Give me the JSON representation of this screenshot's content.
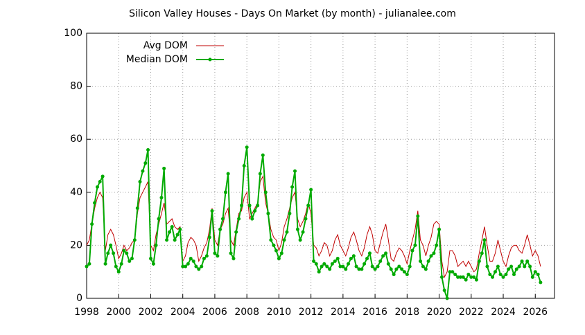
{
  "chart_data": {
    "type": "line",
    "title": "Silicon Valley Houses - Days On Market (by month) - julianalee.com",
    "x": [
      1998.0,
      1998.17,
      1998.33,
      1998.5,
      1998.67,
      1998.83,
      1999.0,
      1999.17,
      1999.33,
      1999.5,
      1999.67,
      1999.83,
      2000.0,
      2000.17,
      2000.33,
      2000.5,
      2000.67,
      2000.83,
      2001.0,
      2001.17,
      2001.33,
      2001.5,
      2001.67,
      2001.83,
      2002.0,
      2002.17,
      2002.33,
      2002.5,
      2002.67,
      2002.83,
      2003.0,
      2003.17,
      2003.33,
      2003.5,
      2003.67,
      2003.83,
      2004.0,
      2004.17,
      2004.33,
      2004.5,
      2004.67,
      2004.83,
      2005.0,
      2005.17,
      2005.33,
      2005.5,
      2005.67,
      2005.83,
      2006.0,
      2006.17,
      2006.33,
      2006.5,
      2006.67,
      2006.83,
      2007.0,
      2007.17,
      2007.33,
      2007.5,
      2007.67,
      2007.83,
      2008.0,
      2008.17,
      2008.33,
      2008.5,
      2008.67,
      2008.83,
      2009.0,
      2009.17,
      2009.33,
      2009.5,
      2009.67,
      2009.83,
      2010.0,
      2010.17,
      2010.33,
      2010.5,
      2010.67,
      2010.83,
      2011.0,
      2011.17,
      2011.33,
      2011.5,
      2011.67,
      2011.83,
      2012.0,
      2012.17,
      2012.33,
      2012.5,
      2012.67,
      2012.83,
      2013.0,
      2013.17,
      2013.33,
      2013.5,
      2013.67,
      2013.83,
      2014.0,
      2014.17,
      2014.33,
      2014.5,
      2014.67,
      2014.83,
      2015.0,
      2015.17,
      2015.33,
      2015.5,
      2015.67,
      2015.83,
      2016.0,
      2016.17,
      2016.33,
      2016.5,
      2016.67,
      2016.83,
      2017.0,
      2017.17,
      2017.33,
      2017.5,
      2017.67,
      2017.83,
      2018.0,
      2018.17,
      2018.33,
      2018.5,
      2018.67,
      2018.83,
      2019.0,
      2019.17,
      2019.33,
      2019.5,
      2019.67,
      2019.83,
      2020.0,
      2020.17,
      2020.33,
      2020.5,
      2020.67,
      2020.83,
      2021.0,
      2021.17,
      2021.33,
      2021.5,
      2021.67,
      2021.83,
      2022.0,
      2022.17,
      2022.33,
      2022.5,
      2022.67,
      2022.83,
      2023.0,
      2023.17,
      2023.33,
      2023.5,
      2023.67,
      2023.83,
      2024.0,
      2024.17,
      2024.33,
      2024.5,
      2024.67,
      2024.83,
      2025.0,
      2025.17,
      2025.33,
      2025.5,
      2025.67,
      2025.83,
      2026.0,
      2026.17,
      2026.33
    ],
    "series": [
      {
        "name": "Avg DOM",
        "color": "#c00000",
        "marker": "none",
        "values": [
          20,
          22,
          28,
          34,
          38,
          40,
          38,
          18,
          24,
          26,
          24,
          20,
          15,
          17,
          20,
          18,
          19,
          21,
          22,
          32,
          38,
          40,
          42,
          44,
          20,
          18,
          24,
          28,
          32,
          36,
          28,
          29,
          30,
          27,
          26,
          27,
          14,
          16,
          21,
          23,
          22,
          20,
          14,
          16,
          19,
          21,
          26,
          34,
          22,
          20,
          26,
          28,
          32,
          34,
          22,
          20,
          26,
          32,
          33,
          38,
          40,
          30,
          32,
          34,
          36,
          44,
          46,
          36,
          32,
          26,
          23,
          22,
          18,
          21,
          27,
          30,
          34,
          38,
          40,
          30,
          27,
          29,
          32,
          36,
          32,
          20,
          19,
          16,
          18,
          21,
          20,
          16,
          18,
          22,
          24,
          20,
          18,
          16,
          19,
          23,
          25,
          22,
          18,
          16,
          19,
          24,
          27,
          24,
          18,
          17,
          21,
          25,
          28,
          22,
          15,
          14,
          17,
          19,
          18,
          16,
          13,
          18,
          22,
          26,
          33,
          22,
          20,
          16,
          20,
          23,
          28,
          29,
          28,
          14,
          8,
          10,
          18,
          18,
          16,
          12,
          13,
          14,
          12,
          14,
          12,
          10,
          11,
          17,
          22,
          27,
          20,
          14,
          14,
          17,
          22,
          18,
          14,
          12,
          16,
          19,
          20,
          20,
          18,
          17,
          20,
          24,
          20,
          16,
          18,
          16,
          12
        ]
      },
      {
        "name": "Median DOM",
        "color": "#00aa00",
        "marker": "circle",
        "values": [
          12,
          13,
          28,
          36,
          42,
          44,
          46,
          13,
          17,
          20,
          17,
          12,
          10,
          13,
          18,
          17,
          14,
          15,
          22,
          34,
          44,
          48,
          51,
          56,
          15,
          13,
          20,
          30,
          38,
          49,
          22,
          25,
          27,
          22,
          24,
          26,
          12,
          12,
          13,
          15,
          14,
          12,
          11,
          12,
          15,
          16,
          23,
          33,
          17,
          16,
          26,
          30,
          40,
          47,
          17,
          15,
          25,
          30,
          35,
          50,
          57,
          35,
          30,
          33,
          35,
          47,
          54,
          40,
          32,
          22,
          20,
          18,
          15,
          17,
          22,
          25,
          32,
          42,
          48,
          26,
          22,
          25,
          30,
          35,
          41,
          14,
          13,
          10,
          12,
          13,
          12,
          11,
          13,
          14,
          15,
          12,
          12,
          11,
          13,
          15,
          16,
          12,
          11,
          11,
          13,
          15,
          17,
          12,
          11,
          12,
          14,
          16,
          17,
          13,
          11,
          9,
          11,
          12,
          11,
          10,
          9,
          12,
          18,
          20,
          31,
          14,
          12,
          11,
          14,
          16,
          17,
          20,
          26,
          8,
          3,
          0,
          10,
          10,
          9,
          8,
          8,
          8,
          7,
          9,
          8,
          8,
          7,
          14,
          17,
          22,
          12,
          9,
          8,
          10,
          12,
          9,
          8,
          9,
          11,
          12,
          9,
          11,
          12,
          14,
          12,
          14,
          12,
          8,
          10,
          9,
          6
        ]
      }
    ],
    "xlim": [
      1998,
      2027.2
    ],
    "ylim": [
      0,
      100
    ],
    "xticks": [
      1998,
      2000,
      2002,
      2004,
      2006,
      2008,
      2010,
      2012,
      2014,
      2016,
      2018,
      2020,
      2022,
      2024,
      2026
    ],
    "yticks": [
      0,
      20,
      40,
      60,
      80,
      100
    ],
    "grid": true,
    "legend": "top-left"
  }
}
